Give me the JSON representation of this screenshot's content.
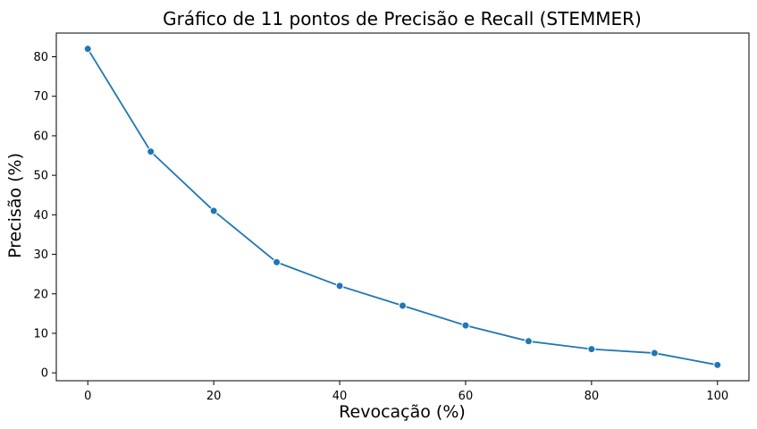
{
  "chart_data": {
    "type": "line",
    "title": "Gráfico de 11 pontos de Precisão e Recall (STEMMER)",
    "xlabel": "Revocação (%)",
    "ylabel": "Precisão (%)",
    "x": [
      0,
      10,
      20,
      30,
      40,
      50,
      60,
      70,
      80,
      90,
      100
    ],
    "series": [
      {
        "values": [
          82,
          56,
          41,
          28,
          22,
          17,
          12,
          8,
          6,
          5,
          2
        ]
      }
    ],
    "xticks": [
      0,
      20,
      40,
      60,
      80,
      100
    ],
    "yticks": [
      0,
      10,
      20,
      30,
      40,
      50,
      60,
      70,
      80
    ],
    "xtick_labels": [
      "0",
      "20",
      "40",
      "60",
      "80",
      "100"
    ],
    "ytick_labels": [
      "0",
      "10",
      "20",
      "30",
      "40",
      "50",
      "60",
      "70",
      "80"
    ],
    "xlim": [
      -5,
      105
    ],
    "ylim": [
      -2,
      86
    ],
    "grid": false,
    "markers": true,
    "colors": {
      "line": "#1f77b4",
      "marker": "#1f77b4",
      "marker_edge": "#ffffff",
      "axes": "#000000",
      "background": "#ffffff"
    }
  }
}
